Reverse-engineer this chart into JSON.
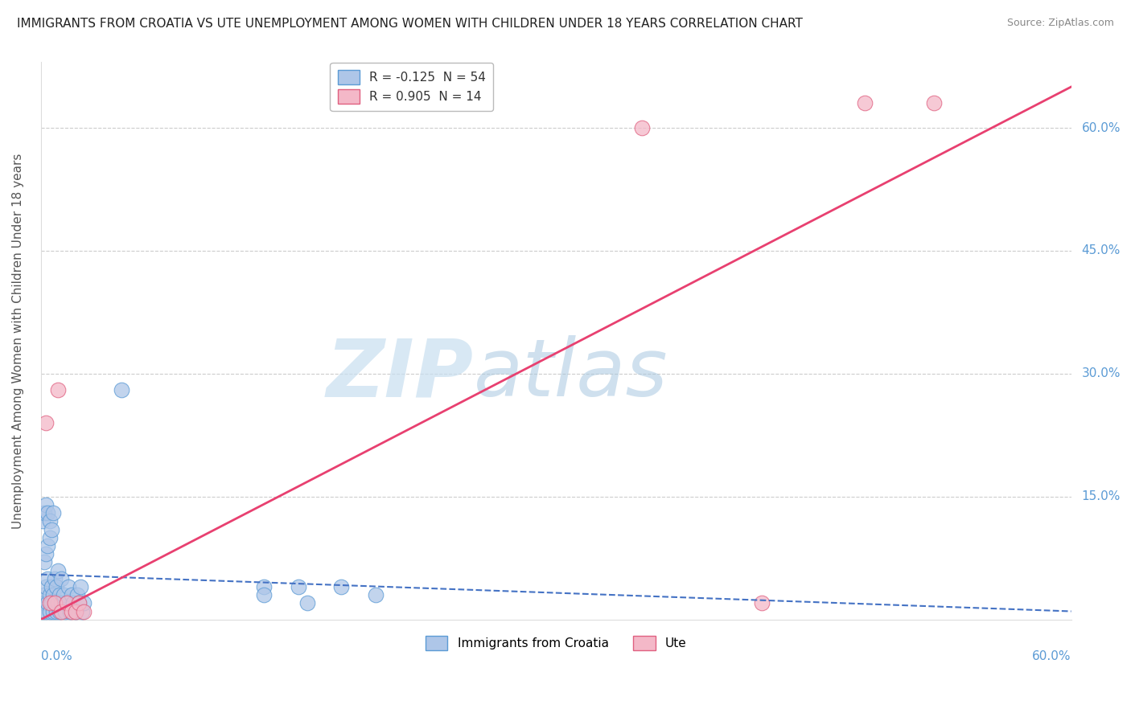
{
  "title": "IMMIGRANTS FROM CROATIA VS UTE UNEMPLOYMENT AMONG WOMEN WITH CHILDREN UNDER 18 YEARS CORRELATION CHART",
  "source": "Source: ZipAtlas.com",
  "xlabel_bottom_left": "0.0%",
  "xlabel_bottom_right": "60.0%",
  "ylabel": "Unemployment Among Women with Children Under 18 years",
  "ytick_labels_right": [
    "15.0%",
    "30.0%",
    "45.0%",
    "60.0%"
  ],
  "ytick_values": [
    0.15,
    0.3,
    0.45,
    0.6
  ],
  "xlim": [
    0.0,
    0.6
  ],
  "ylim": [
    0.0,
    0.68
  ],
  "watermark_text": "ZIP",
  "watermark_text2": "atlas",
  "watermark_color": "#c8dff0",
  "group1_label": "Immigrants from Croatia",
  "group1_color": "#aec6e8",
  "group1_edge_color": "#5b9bd5",
  "group1_line_color": "#4472c4",
  "group1_line_style": "--",
  "group2_label": "Ute",
  "group2_color": "#f4b8c8",
  "group2_edge_color": "#e06080",
  "group2_line_color": "#e84070",
  "group2_line_style": "-",
  "background_color": "#ffffff",
  "grid_color": "#cccccc",
  "title_fontsize": 11,
  "source_fontsize": 9,
  "axis_label_fontsize": 11,
  "tick_fontsize": 11,
  "scatter_alpha": 0.75,
  "scatter_size": 180,
  "legend_R1": "R = -0.125",
  "legend_N1": "N = 54",
  "legend_R2": "R = 0.905",
  "legend_N2": "N = 14",
  "g1_x": [
    0.001,
    0.002,
    0.002,
    0.003,
    0.003,
    0.004,
    0.004,
    0.005,
    0.005,
    0.006,
    0.006,
    0.007,
    0.007,
    0.008,
    0.008,
    0.009,
    0.009,
    0.01,
    0.01,
    0.011,
    0.011,
    0.012,
    0.012,
    0.013,
    0.014,
    0.015,
    0.016,
    0.017,
    0.018,
    0.019,
    0.02,
    0.021,
    0.022,
    0.023,
    0.024,
    0.025,
    0.002,
    0.003,
    0.004,
    0.005,
    0.001,
    0.002,
    0.003,
    0.004,
    0.005,
    0.006,
    0.007,
    0.047,
    0.13,
    0.155,
    0.175,
    0.195,
    0.13,
    0.15
  ],
  "g1_y": [
    0.01,
    0.02,
    0.03,
    0.01,
    0.04,
    0.02,
    0.05,
    0.01,
    0.03,
    0.02,
    0.04,
    0.01,
    0.03,
    0.02,
    0.05,
    0.01,
    0.04,
    0.02,
    0.06,
    0.03,
    0.01,
    0.02,
    0.05,
    0.03,
    0.01,
    0.02,
    0.04,
    0.01,
    0.03,
    0.02,
    0.01,
    0.03,
    0.02,
    0.04,
    0.01,
    0.02,
    0.07,
    0.08,
    0.09,
    0.1,
    0.12,
    0.13,
    0.14,
    0.13,
    0.12,
    0.11,
    0.13,
    0.28,
    0.04,
    0.02,
    0.04,
    0.03,
    0.03,
    0.04
  ],
  "g2_x": [
    0.003,
    0.005,
    0.008,
    0.01,
    0.012,
    0.015,
    0.018,
    0.02,
    0.022,
    0.025,
    0.35,
    0.42,
    0.48,
    0.52
  ],
  "g2_y": [
    0.24,
    0.02,
    0.02,
    0.28,
    0.01,
    0.02,
    0.01,
    0.01,
    0.02,
    0.01,
    0.6,
    0.02,
    0.63,
    0.63
  ],
  "g1_trend_x": [
    0.0,
    0.6
  ],
  "g1_trend_y": [
    0.055,
    0.01
  ],
  "g2_trend_x": [
    0.0,
    0.6
  ],
  "g2_trend_y": [
    0.0,
    0.65
  ]
}
